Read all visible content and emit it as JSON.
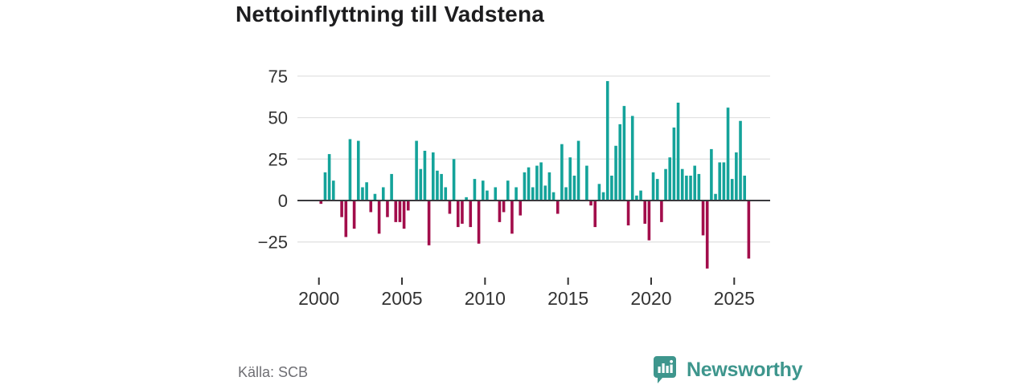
{
  "title": "Nettoinflyttning till Vadstena",
  "source": "Källa: SCB",
  "brand": {
    "name": "Newsworthy",
    "color": "#3e968d",
    "icon": "speech-bubble-bar-chart-icon"
  },
  "colors": {
    "positive": "#14a39a",
    "negative": "#a20d4b",
    "grid": "#e2e2e2",
    "zero_line": "#3a3a3e",
    "axis_text": "#333333",
    "title_text": "#1d1d1f",
    "muted_text": "#6e6e73"
  },
  "chart_data": {
    "type": "bar",
    "title": "Nettoinflyttning till Vadstena",
    "frequency": "quarterly",
    "start_period": "2000Q1",
    "end_period": "2025Q4",
    "start_year": 2000,
    "x_tick_labels": [
      "2000",
      "2005",
      "2010",
      "2015",
      "2020",
      "2025"
    ],
    "y_ticks": [
      75,
      50,
      25,
      0,
      -25
    ],
    "ylim": [
      -46,
      82
    ],
    "grid": "horizontal",
    "legend": "none",
    "values": [
      -2,
      17,
      28,
      12,
      0,
      -10,
      -22,
      37,
      -17,
      36,
      8,
      11,
      -7,
      4,
      -20,
      8,
      -10,
      16,
      -13,
      -13,
      -17,
      -6,
      0,
      36,
      19,
      30,
      -27,
      29,
      18,
      16,
      8,
      -8,
      25,
      -16,
      -14,
      2,
      -16,
      13,
      -26,
      12,
      6,
      0,
      8,
      -13,
      -7,
      12,
      -20,
      8,
      -9,
      17,
      20,
      8,
      21,
      23,
      9,
      17,
      5,
      -8,
      34,
      8,
      26,
      15,
      36,
      0,
      21,
      -3,
      -16,
      10,
      5,
      72,
      15,
      33,
      46,
      57,
      -15,
      51,
      3,
      6,
      -14,
      -24,
      17,
      13,
      -13,
      19,
      26,
      44,
      59,
      19,
      15,
      15,
      21,
      16,
      -21,
      -41,
      31,
      4,
      23,
      23,
      56,
      13,
      29,
      48,
      15,
      -35
    ]
  }
}
